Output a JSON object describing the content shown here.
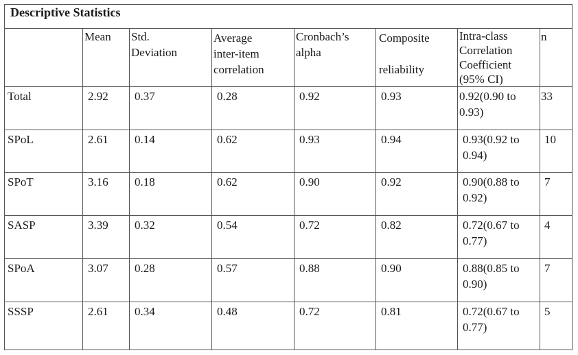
{
  "table": {
    "title": "Descriptive Statistics",
    "headers": {
      "mean": "Mean",
      "std": "Std.\nDeviation",
      "avg_corr": "Average\ninter-item\ncorrelation",
      "alpha": "Cronbach’s\nalpha",
      "composite": "Composite\n\nreliability",
      "icc": "Intra-class\nCorrelation\nCoefficient\n(95% CI)",
      "n": "n"
    },
    "rows": [
      {
        "label": " Total",
        "mean": "2.92",
        "std": "0.37",
        "avg_corr": "0.28",
        "alpha": "0.92",
        "composite": "0.93",
        "icc": "0.92(0.90 to\n0.93)",
        "n": "33"
      },
      {
        "label": "SPoL",
        "mean": "2.61",
        "std": "0.14",
        "avg_corr": "0.62",
        "alpha": "0.93",
        "composite": "0.94",
        "icc": "0.93(0.92 to\n0.94)",
        "n": "10"
      },
      {
        "label": "SPoT",
        "mean": "3.16",
        "std": "0.18",
        "avg_corr": "0.62",
        "alpha": "0.90",
        "composite": "0.92",
        "icc": "0.90(0.88 to\n0.92)",
        "n": "7"
      },
      {
        "label": "SASP",
        "mean": "3.39",
        "std": "0.32",
        "avg_corr": "0.54",
        "alpha": "0.72",
        "composite": "0.82",
        "icc": "0.72(0.67 to\n0.77)",
        "n": "4"
      },
      {
        "label": "SPoA",
        "mean": "3.07",
        "std": "0.28",
        "avg_corr": "0.57",
        "alpha": "0.88",
        "composite": "0.90",
        "icc": "0.88(0.85 to\n0.90)",
        "n": "7"
      },
      {
        "label": "SSSP",
        "mean": "2.61",
        "std": "0.34",
        "avg_corr": "0.48",
        "alpha": "0.72",
        "composite": "0.81",
        "icc": "0.72(0.67 to\n0.77)",
        "n": "5"
      }
    ]
  }
}
